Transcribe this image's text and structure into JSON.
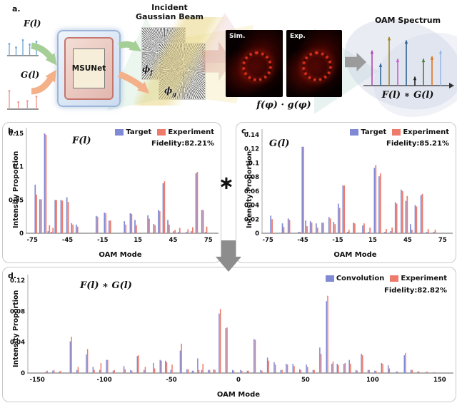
{
  "figure": {
    "panel_a_label": "a.",
    "panel_b_label": "b.",
    "panel_c_label": "c.",
    "panel_d_label": "d.",
    "convolution_symbol": "∗"
  },
  "panel_a": {
    "f_spectrum_label": "F(l)",
    "g_spectrum_label": "G(l)",
    "msunet_label": "MSUNet",
    "incident_beam_line1": "Incident",
    "incident_beam_line2": "Gaussian Beam",
    "phi_f_base": "ϕ",
    "phi_f_sub": "f",
    "phi_g_base": "ϕ",
    "phi_g_sub": "g",
    "sim_label": "Sim.",
    "exp_label": "Exp.",
    "product_label": "f(φ) · g(φ)",
    "oam_spectrum_title": "OAM Spectrum",
    "oam_result_label": "F(l) ∗ G(l)",
    "f_stem_color": "#74a9d8",
    "g_stem_color": "#ef9a8e",
    "f_stems": [
      0.55,
      0.38,
      0.72,
      0.52,
      0.65
    ],
    "g_stems": [
      0.8,
      0.3,
      0.35,
      0.55
    ],
    "oam_stems": [
      {
        "h": 0.72,
        "color": "#b04ab0"
      },
      {
        "h": 0.45,
        "color": "#33689e"
      },
      {
        "h": 1.0,
        "color": "#a08a28"
      },
      {
        "h": 0.55,
        "color": "#cc5ccc"
      },
      {
        "h": 0.93,
        "color": "#2e5e8e"
      },
      {
        "h": 0.18,
        "color": "#222222"
      },
      {
        "h": 0.55,
        "color": "#4a7d3c"
      },
      {
        "h": 0.6,
        "color": "#e07020"
      },
      {
        "h": 0.72,
        "color": "#9ab8e8"
      }
    ]
  },
  "chart_data": [
    {
      "panel": "b",
      "type": "bar",
      "title": "F(l)",
      "legend": [
        "Target",
        "Experiment"
      ],
      "fidelity": "Fidelity:82.21%",
      "xlabel": "OAM Mode",
      "ylabel": "Intensity Proportion",
      "series_colors": [
        "#8089d4",
        "#ee7a6c"
      ],
      "ylim": [
        0,
        0.15
      ],
      "yticks": [
        0,
        0.05,
        0.1,
        0.15
      ],
      "ytick_labels": [
        "0",
        "0.05",
        "0.1",
        "0.15"
      ],
      "xticks": [
        -75,
        -45,
        -15,
        15,
        45,
        75
      ],
      "points": [
        [
          -72,
          0.073,
          0.058
        ],
        [
          -68,
          0.051,
          0.051
        ],
        [
          -64,
          0.15,
          0.148
        ],
        [
          -61,
          0.003,
          0.012
        ],
        [
          -58,
          0.002,
          0.008
        ],
        [
          -55,
          0.05,
          0.05
        ],
        [
          -50,
          0.05,
          0.049
        ],
        [
          -45,
          0.054,
          0.047
        ],
        [
          -41,
          0.015,
          0.013
        ],
        [
          -37,
          0.013,
          0.01
        ],
        [
          -20,
          0.026,
          0.025
        ],
        [
          -13,
          0.031,
          0.03
        ],
        [
          -9,
          0.019,
          0.019
        ],
        [
          4,
          0.018,
          0.013
        ],
        [
          9,
          0.03,
          0.029
        ],
        [
          13,
          0.02,
          0.012
        ],
        [
          24,
          0.027,
          0.022
        ],
        [
          29,
          0.014,
          0.012
        ],
        [
          33,
          0.035,
          0.033
        ],
        [
          37,
          0.075,
          0.078
        ],
        [
          41,
          0.02,
          0.013
        ],
        [
          46,
          0.003,
          0.005
        ],
        [
          50,
          0.002,
          0.008
        ],
        [
          57,
          0.002,
          0.006
        ],
        [
          61,
          0.003,
          0.009
        ],
        [
          65,
          0.09,
          0.092
        ],
        [
          70,
          0.035,
          0.035
        ],
        [
          73,
          0.002,
          0.01
        ]
      ]
    },
    {
      "panel": "c",
      "type": "bar",
      "title": "G(l)",
      "legend": [
        "Target",
        "Experiment"
      ],
      "fidelity": "Fidelity:85.21%",
      "xlabel": "OAM Mode",
      "ylabel": "Intensity Proportion",
      "series_colors": [
        "#8089d4",
        "#ee7a6c"
      ],
      "ylim": [
        0,
        0.14
      ],
      "yticks": [
        0,
        0.02,
        0.04,
        0.06,
        0.08,
        0.1,
        0.12,
        0.14
      ],
      "ytick_labels": [
        "0",
        "0.02",
        "0.04",
        "0.06",
        "0.08",
        "0.1",
        "0.12",
        "0.14"
      ],
      "xticks": [
        -75,
        -45,
        -15,
        15,
        45,
        75
      ],
      "points": [
        [
          -72,
          0.025,
          0.02
        ],
        [
          -62,
          0.014,
          0.009
        ],
        [
          -57,
          0.021,
          0.019
        ],
        [
          -48,
          0.002,
          0.002
        ],
        [
          -45,
          0.123,
          0.123
        ],
        [
          -42,
          0.018,
          0.01
        ],
        [
          -38,
          0.017,
          0.015
        ],
        [
          -33,
          0.014,
          0.008
        ],
        [
          -28,
          0.015,
          0.015
        ],
        [
          -22,
          0.023,
          0.021
        ],
        [
          -18,
          0.016,
          0.013
        ],
        [
          -14,
          0.042,
          0.036
        ],
        [
          -10,
          0.068,
          0.068
        ],
        [
          -6,
          0.002,
          0.005
        ],
        [
          -1,
          0.015,
          0.014
        ],
        [
          7,
          0.011,
          0.014
        ],
        [
          12,
          0.002,
          0.008
        ],
        [
          17,
          0.093,
          0.097
        ],
        [
          21,
          0.081,
          0.085
        ],
        [
          26,
          0.002,
          0.006
        ],
        [
          31,
          0.003,
          0.008
        ],
        [
          35,
          0.044,
          0.042
        ],
        [
          40,
          0.062,
          0.06
        ],
        [
          44,
          0.046,
          0.053
        ],
        [
          48,
          0.013,
          0.005
        ],
        [
          52,
          0.04,
          0.038
        ],
        [
          57,
          0.054,
          0.056
        ],
        [
          62,
          0.002,
          0.006
        ],
        [
          68,
          0.002,
          0.005
        ]
      ]
    },
    {
      "panel": "d",
      "type": "bar",
      "title": "F(l) ∗ G(l)",
      "legend": [
        "Convolution",
        "Experiment"
      ],
      "fidelity": "Fidelity:82.82%",
      "xlabel": "OAM Mode",
      "ylabel": "Intensity Proportion",
      "series_colors": [
        "#8089d4",
        "#ee7a6c"
      ],
      "ylim": [
        0,
        0.12
      ],
      "yticks": [
        0,
        0.04,
        0.08,
        0.12
      ],
      "ytick_labels": [
        "0",
        "0.04",
        "0.08",
        "0.12"
      ],
      "xticks": [
        -150,
        -100,
        -50,
        0,
        50,
        100,
        150
      ],
      "points": [
        [
          -143,
          0.002,
          0.003
        ],
        [
          -138,
          0.003,
          0.004
        ],
        [
          -133,
          0.002,
          0.003
        ],
        [
          -125,
          0.041,
          0.047
        ],
        [
          -120,
          0.004,
          0.008
        ],
        [
          -113,
          0.024,
          0.031
        ],
        [
          -108,
          0.008,
          0.004
        ],
        [
          -103,
          0.004,
          0.013
        ],
        [
          -98,
          0.017,
          0.017
        ],
        [
          -93,
          0.003,
          0.004
        ],
        [
          -85,
          0.009,
          0.005
        ],
        [
          -80,
          0.004,
          0.003
        ],
        [
          -75,
          0.022,
          0.023
        ],
        [
          -70,
          0.004,
          0.008
        ],
        [
          -63,
          0.013,
          0.006
        ],
        [
          -58,
          0.017,
          0.016
        ],
        [
          -54,
          0.016,
          0.014
        ],
        [
          -50,
          0.004,
          0.011
        ],
        [
          -43,
          0.029,
          0.038
        ],
        [
          -38,
          0.005,
          0.005
        ],
        [
          -34,
          0.003,
          0.003
        ],
        [
          -30,
          0.019,
          0.004
        ],
        [
          -27,
          0.004,
          0.012
        ],
        [
          -22,
          0.004,
          0.004
        ],
        [
          -18,
          0.005,
          0.004
        ],
        [
          -14,
          0.077,
          0.083
        ],
        [
          -9,
          0.058,
          0.059
        ],
        [
          -4,
          0.004,
          0.003
        ],
        [
          2,
          0.004,
          0.003
        ],
        [
          7,
          0.003,
          0.003
        ],
        [
          12,
          0.044,
          0.043
        ],
        [
          17,
          0.004,
          0.003
        ],
        [
          22,
          0.02,
          0.016
        ],
        [
          27,
          0.014,
          0.011
        ],
        [
          32,
          0.004,
          0.004
        ],
        [
          36,
          0.012,
          0.011
        ],
        [
          41,
          0.012,
          0.009
        ],
        [
          46,
          0.005,
          0.004
        ],
        [
          51,
          0.011,
          0.008
        ],
        [
          56,
          0.004,
          0.004
        ],
        [
          61,
          0.033,
          0.025
        ],
        [
          66,
          0.093,
          0.1
        ],
        [
          70,
          0.012,
          0.015
        ],
        [
          74,
          0.012,
          0.01
        ],
        [
          79,
          0.012,
          0.013
        ],
        [
          83,
          0.017,
          0.012
        ],
        [
          88,
          0.004,
          0.003
        ],
        [
          92,
          0.025,
          0.023
        ],
        [
          97,
          0.004,
          0.004
        ],
        [
          102,
          0.003,
          0.003
        ],
        [
          107,
          0.013,
          0.012
        ],
        [
          112,
          0.01,
          0.006
        ],
        [
          118,
          0.002,
          0.002
        ],
        [
          124,
          0.023,
          0.026
        ],
        [
          129,
          0.004,
          0.004
        ],
        [
          134,
          0.002,
          0.002
        ],
        [
          140,
          0.001,
          0.002
        ],
        [
          146,
          0.001,
          0.001
        ]
      ]
    }
  ]
}
